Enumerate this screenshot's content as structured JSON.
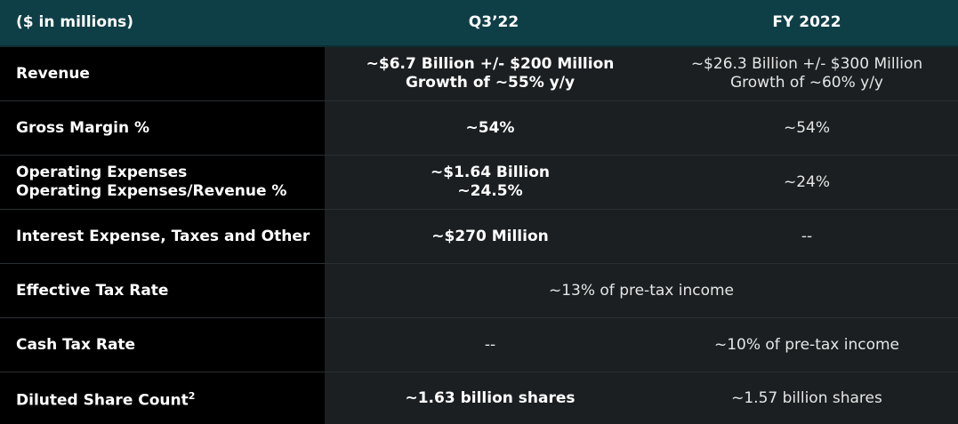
{
  "header": {
    "col0": "($ in millions)",
    "col1": "Q3’22",
    "col2": "FY 2022"
  },
  "rows": [
    {
      "label": [
        "Revenue"
      ],
      "q3": [
        "~$6.7 Billion +/- $200 Million",
        "Growth of ~55% y/y"
      ],
      "fy": [
        "~$26.3 Billion +/- $300 Million",
        "Growth of ~60% y/y"
      ]
    },
    {
      "label": [
        "Gross Margin %"
      ],
      "q3": [
        "~54%"
      ],
      "fy": [
        "~54%"
      ]
    },
    {
      "label": [
        "Operating Expenses",
        "Operating Expenses/Revenue %"
      ],
      "q3": [
        "~$1.64 Billion",
        "~24.5%"
      ],
      "fy": [
        "~24%"
      ]
    },
    {
      "label": [
        "Interest Expense, Taxes and Other"
      ],
      "q3": [
        "~$270 Million"
      ],
      "fy": [
        "--"
      ]
    },
    {
      "label": [
        "Effective Tax Rate"
      ],
      "span": "~13% of pre-tax income"
    },
    {
      "label": [
        "Cash Tax Rate"
      ],
      "q3": [
        "--"
      ],
      "fy": [
        "~10% of pre-tax income"
      ]
    },
    {
      "label": [
        "Diluted Share Count"
      ],
      "label_sup": "2",
      "q3": [
        "~1.63 billion shares"
      ],
      "fy": [
        "~1.57 billion shares"
      ]
    }
  ],
  "colors": {
    "header_bg": "#0f3f46",
    "label_bg": "#000000",
    "cell_bg": "#1b1f22"
  }
}
